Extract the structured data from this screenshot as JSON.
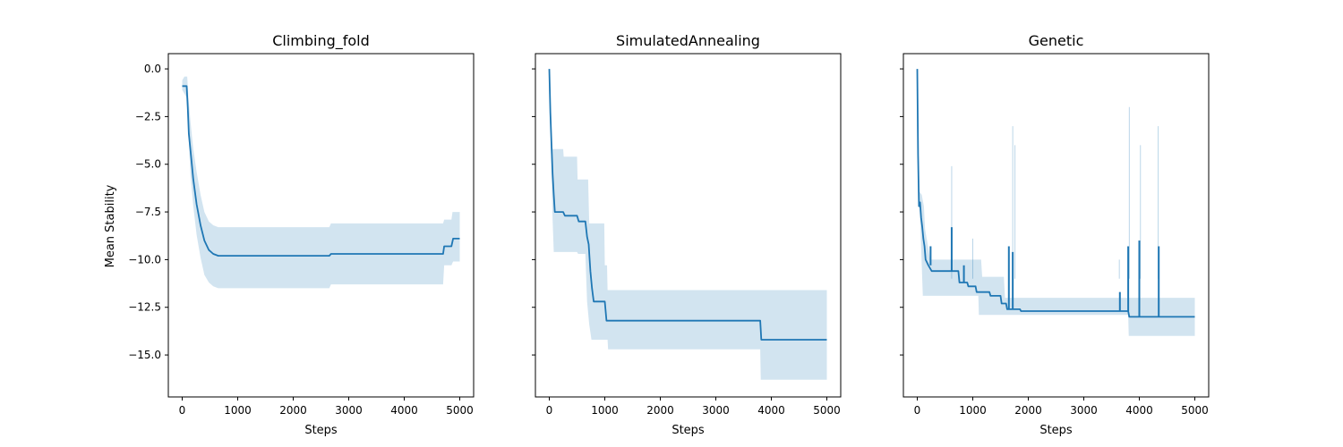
{
  "chart_data": {
    "type": "line",
    "ylabel": "Mean Stability",
    "colors": {
      "line": "#1f77b4",
      "band": "#1f77b4"
    },
    "x_ticks": [
      0,
      1000,
      2000,
      3000,
      4000,
      5000
    ],
    "y_ticks": [
      0.0,
      -2.5,
      -5.0,
      -7.5,
      -10.0,
      -12.5,
      -15.0
    ],
    "y_tick_labels": [
      "0.0",
      "−2.5",
      "−5.0",
      "−7.5",
      "−10.0",
      "−12.5",
      "−15.0"
    ],
    "shared_y": true,
    "ylim": [
      -17.2,
      0.8
    ],
    "xlim": [
      -250,
      5250
    ],
    "panels": [
      {
        "title": "Climbing_fold",
        "xlabel": "Steps",
        "mean": [
          [
            0,
            -0.9
          ],
          [
            80,
            -0.9
          ],
          [
            100,
            -2.0
          ],
          [
            120,
            -3.4
          ],
          [
            150,
            -4.3
          ],
          [
            200,
            -5.8
          ],
          [
            260,
            -7.1
          ],
          [
            330,
            -8.2
          ],
          [
            400,
            -9.0
          ],
          [
            480,
            -9.5
          ],
          [
            560,
            -9.7
          ],
          [
            650,
            -9.8
          ],
          [
            2650,
            -9.8
          ],
          [
            2680,
            -9.7
          ],
          [
            4700,
            -9.7
          ],
          [
            4720,
            -9.3
          ],
          [
            4850,
            -9.3
          ],
          [
            4880,
            -8.9
          ],
          [
            5000,
            -8.9
          ]
        ],
        "upper": [
          [
            0,
            -0.6
          ],
          [
            40,
            -0.4
          ],
          [
            90,
            -0.4
          ],
          [
            110,
            -1.4
          ],
          [
            150,
            -2.8
          ],
          [
            200,
            -4.2
          ],
          [
            260,
            -5.4
          ],
          [
            330,
            -6.6
          ],
          [
            400,
            -7.5
          ],
          [
            480,
            -8.0
          ],
          [
            560,
            -8.2
          ],
          [
            650,
            -8.3
          ],
          [
            2650,
            -8.3
          ],
          [
            2680,
            -8.1
          ],
          [
            4700,
            -8.1
          ],
          [
            4720,
            -7.9
          ],
          [
            4850,
            -7.9
          ],
          [
            4870,
            -7.5
          ],
          [
            5000,
            -7.5
          ]
        ],
        "lower": [
          [
            0,
            -1.1
          ],
          [
            80,
            -1.5
          ],
          [
            100,
            -2.7
          ],
          [
            150,
            -5.6
          ],
          [
            200,
            -7.2
          ],
          [
            260,
            -8.7
          ],
          [
            330,
            -9.9
          ],
          [
            400,
            -10.8
          ],
          [
            480,
            -11.2
          ],
          [
            560,
            -11.4
          ],
          [
            650,
            -11.5
          ],
          [
            2650,
            -11.5
          ],
          [
            2680,
            -11.3
          ],
          [
            4700,
            -11.3
          ],
          [
            4720,
            -10.3
          ],
          [
            4850,
            -10.3
          ],
          [
            4880,
            -10.1
          ],
          [
            5000,
            -10.1
          ]
        ],
        "spikes": []
      },
      {
        "title": "SimulatedAnnealing",
        "xlabel": "Steps",
        "mean": [
          [
            0,
            0.0
          ],
          [
            20,
            -2.3
          ],
          [
            40,
            -4.0
          ],
          [
            60,
            -5.5
          ],
          [
            80,
            -6.6
          ],
          [
            100,
            -7.5
          ],
          [
            250,
            -7.5
          ],
          [
            280,
            -7.7
          ],
          [
            500,
            -7.7
          ],
          [
            530,
            -8.0
          ],
          [
            650,
            -8.0
          ],
          [
            680,
            -8.8
          ],
          [
            710,
            -9.2
          ],
          [
            740,
            -10.6
          ],
          [
            770,
            -11.5
          ],
          [
            800,
            -12.2
          ],
          [
            1000,
            -12.2
          ],
          [
            1030,
            -13.2
          ],
          [
            3800,
            -13.2
          ],
          [
            3820,
            -14.2
          ],
          [
            5000,
            -14.2
          ]
        ],
        "upper": [
          [
            0,
            0.0
          ],
          [
            20,
            -2.3
          ],
          [
            40,
            -3.6
          ],
          [
            60,
            -4.2
          ],
          [
            250,
            -4.2
          ],
          [
            260,
            -4.6
          ],
          [
            500,
            -4.6
          ],
          [
            510,
            -5.8
          ],
          [
            700,
            -5.8
          ],
          [
            720,
            -8.1
          ],
          [
            990,
            -8.1
          ],
          [
            1000,
            -10.3
          ],
          [
            1040,
            -10.3
          ],
          [
            1050,
            -11.6
          ],
          [
            5000,
            -11.6
          ]
        ],
        "lower": [
          [
            0,
            0.0
          ],
          [
            20,
            -2.8
          ],
          [
            40,
            -5.6
          ],
          [
            60,
            -7.9
          ],
          [
            80,
            -9.6
          ],
          [
            500,
            -9.6
          ],
          [
            520,
            -9.7
          ],
          [
            650,
            -9.7
          ],
          [
            680,
            -12.2
          ],
          [
            720,
            -13.4
          ],
          [
            760,
            -14.2
          ],
          [
            1050,
            -14.2
          ],
          [
            1060,
            -14.7
          ],
          [
            3800,
            -14.7
          ],
          [
            3810,
            -16.3
          ],
          [
            5000,
            -16.3
          ]
        ],
        "spikes": []
      },
      {
        "title": "Genetic",
        "xlabel": "Steps",
        "mean": [
          [
            0,
            0.0
          ],
          [
            15,
            -4.5
          ],
          [
            30,
            -7.2
          ],
          [
            50,
            -7.0
          ],
          [
            70,
            -7.8
          ],
          [
            90,
            -8.3
          ],
          [
            110,
            -8.9
          ],
          [
            130,
            -9.3
          ],
          [
            150,
            -10.0
          ],
          [
            200,
            -10.3
          ],
          [
            260,
            -10.6
          ],
          [
            740,
            -10.6
          ],
          [
            760,
            -11.2
          ],
          [
            900,
            -11.2
          ],
          [
            920,
            -11.4
          ],
          [
            1050,
            -11.4
          ],
          [
            1070,
            -11.7
          ],
          [
            1300,
            -11.7
          ],
          [
            1320,
            -11.9
          ],
          [
            1500,
            -11.9
          ],
          [
            1520,
            -12.3
          ],
          [
            1600,
            -12.3
          ],
          [
            1620,
            -12.6
          ],
          [
            1850,
            -12.6
          ],
          [
            1870,
            -12.7
          ],
          [
            3800,
            -12.7
          ],
          [
            3820,
            -13.0
          ],
          [
            5000,
            -13.0
          ]
        ],
        "upper": [
          [
            0,
            0.0
          ],
          [
            15,
            -3.5
          ],
          [
            30,
            -6.4
          ],
          [
            80,
            -6.6
          ],
          [
            120,
            -7.2
          ],
          [
            140,
            -8.4
          ],
          [
            200,
            -9.4
          ],
          [
            230,
            -10.0
          ],
          [
            1150,
            -10.0
          ],
          [
            1170,
            -10.9
          ],
          [
            1560,
            -10.9
          ],
          [
            1580,
            -12.0
          ],
          [
            5000,
            -12.0
          ]
        ],
        "lower": [
          [
            0,
            0.0
          ],
          [
            15,
            -6.0
          ],
          [
            60,
            -8.5
          ],
          [
            100,
            -11.9
          ],
          [
            1100,
            -11.9
          ],
          [
            1110,
            -12.9
          ],
          [
            3800,
            -12.9
          ],
          [
            3810,
            -14.0
          ],
          [
            5000,
            -14.0
          ]
        ],
        "spikes": [
          [
            240,
            -9.3
          ],
          [
            620,
            -8.3
          ],
          [
            840,
            -10.3
          ],
          [
            1650,
            -9.3
          ],
          [
            1720,
            -9.6
          ],
          [
            3650,
            -11.7
          ],
          [
            3800,
            -9.3
          ],
          [
            4000,
            -9.0
          ],
          [
            4350,
            -9.3
          ]
        ],
        "light_spikes": [
          [
            620,
            -5.1
          ],
          [
            1000,
            -8.9
          ],
          [
            1720,
            -3.0
          ],
          [
            1760,
            -4.0
          ],
          [
            3820,
            -2.0
          ],
          [
            4020,
            -4.0
          ],
          [
            4340,
            -3.0
          ],
          [
            3640,
            -10.0
          ]
        ]
      }
    ]
  }
}
